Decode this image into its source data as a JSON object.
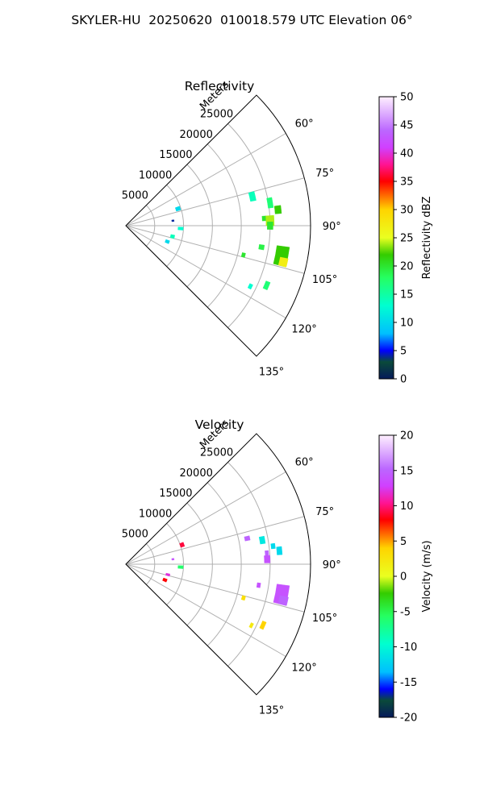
{
  "figure": {
    "title": "SKYLER-HU  20250620  010018.579 UTC Elevation 06°"
  },
  "chart_data": [
    {
      "type": "heatmap",
      "projection": "polar-sector",
      "title": "Reflectivity",
      "range_label": "Meters",
      "range_ticks": [
        5000,
        10000,
        15000,
        20000,
        25000
      ],
      "range_max": 32000,
      "azimuth_range_deg": [
        45,
        135
      ],
      "azimuth_tick_labels": [
        "60°",
        "75°",
        "90°",
        "105°",
        "120°",
        "135°"
      ],
      "azimuth_tick_values": [
        60,
        75,
        90,
        105,
        120,
        135
      ],
      "grid": true,
      "colorbar": {
        "label": "Reflectivity dBZ",
        "min": 0,
        "max": 50,
        "ticks": [
          0,
          5,
          10,
          15,
          20,
          25,
          30,
          35,
          40,
          45,
          50
        ],
        "colormap": "pyart_HomeyerRainbow-like",
        "stops": [
          [
            0,
            "#061a5a"
          ],
          [
            0.06,
            "#0a4a3a"
          ],
          [
            0.1,
            "#0000ff"
          ],
          [
            0.16,
            "#00bfff"
          ],
          [
            0.26,
            "#00ffd0"
          ],
          [
            0.36,
            "#26ff60"
          ],
          [
            0.44,
            "#34cc00"
          ],
          [
            0.5,
            "#eaff20"
          ],
          [
            0.6,
            "#ffd400"
          ],
          [
            0.7,
            "#ff0000"
          ],
          [
            0.76,
            "#ff1493"
          ],
          [
            0.82,
            "#d040ff"
          ],
          [
            0.88,
            "#bb66ff"
          ],
          [
            1.0,
            "#fff0ff"
          ]
        ]
      },
      "echo_cells": [
        {
          "az": 77,
          "r": 22500,
          "dr": 1000,
          "daz": 4,
          "value": 14
        },
        {
          "az": 81,
          "r": 25300,
          "dr": 900,
          "daz": 4,
          "value": 17
        },
        {
          "az": 84,
          "r": 26500,
          "dr": 1100,
          "daz": 3,
          "value": 22
        },
        {
          "az": 87,
          "r": 24000,
          "dr": 700,
          "daz": 2,
          "value": 20
        },
        {
          "az": 88,
          "r": 25000,
          "dr": 1400,
          "daz": 4,
          "value": 24
        },
        {
          "az": 90,
          "r": 25000,
          "dr": 1000,
          "daz": 3,
          "value": 20
        },
        {
          "az": 99,
          "r": 23800,
          "dr": 900,
          "daz": 2,
          "value": 19
        },
        {
          "az": 101,
          "r": 27500,
          "dr": 2200,
          "daz": 7,
          "value": 22
        },
        {
          "az": 103,
          "r": 28000,
          "dr": 1400,
          "daz": 3,
          "value": 27
        },
        {
          "az": 104,
          "r": 21000,
          "dr": 600,
          "daz": 2,
          "value": 20
        },
        {
          "az": 113,
          "r": 26500,
          "dr": 800,
          "daz": 3,
          "value": 17
        },
        {
          "az": 116,
          "r": 24000,
          "dr": 600,
          "daz": 2,
          "value": 13
        },
        {
          "az": 72,
          "r": 9500,
          "dr": 800,
          "daz": 4,
          "value": 10
        },
        {
          "az": 84,
          "r": 8200,
          "dr": 400,
          "daz": 2,
          "value": 4
        },
        {
          "az": 93,
          "r": 9500,
          "dr": 900,
          "daz": 3,
          "value": 13
        },
        {
          "az": 103,
          "r": 8300,
          "dr": 700,
          "daz": 4,
          "value": 14
        },
        {
          "az": 111,
          "r": 7700,
          "dr": 700,
          "daz": 4,
          "value": 10
        }
      ]
    },
    {
      "type": "heatmap",
      "projection": "polar-sector",
      "title": "Velocity",
      "range_label": "Meters",
      "range_ticks": [
        5000,
        10000,
        15000,
        20000,
        25000
      ],
      "range_max": 32000,
      "azimuth_range_deg": [
        45,
        135
      ],
      "azimuth_tick_labels": [
        "60°",
        "75°",
        "90°",
        "105°",
        "120°",
        "135°"
      ],
      "azimuth_tick_values": [
        60,
        75,
        90,
        105,
        120,
        135
      ],
      "grid": true,
      "colorbar": {
        "label": "Velocity (m/s)",
        "min": -20,
        "max": 20,
        "ticks": [
          -20,
          -15,
          -10,
          -5,
          0,
          5,
          10,
          15,
          20
        ],
        "colormap": "pyart_BuDRd-like",
        "stops": [
          [
            0,
            "#061a5a"
          ],
          [
            0.06,
            "#0a4a3a"
          ],
          [
            0.1,
            "#0000ff"
          ],
          [
            0.16,
            "#00bfff"
          ],
          [
            0.26,
            "#00ffd0"
          ],
          [
            0.36,
            "#26ff60"
          ],
          [
            0.44,
            "#34cc00"
          ],
          [
            0.5,
            "#eaff20"
          ],
          [
            0.6,
            "#ffd400"
          ],
          [
            0.7,
            "#ff0000"
          ],
          [
            0.76,
            "#ff1493"
          ],
          [
            0.82,
            "#d040ff"
          ],
          [
            0.88,
            "#bb66ff"
          ],
          [
            1.0,
            "#fff0ff"
          ]
        ]
      },
      "echo_cells": [
        {
          "az": 78,
          "r": 21500,
          "dr": 900,
          "daz": 2,
          "value": 15
        },
        {
          "az": 80,
          "r": 24000,
          "dr": 900,
          "daz": 3,
          "value": -11
        },
        {
          "az": 83,
          "r": 25700,
          "dr": 700,
          "daz": 2,
          "value": -12
        },
        {
          "az": 85,
          "r": 26700,
          "dr": 900,
          "daz": 3,
          "value": -12
        },
        {
          "az": 86,
          "r": 24500,
          "dr": 600,
          "daz": 3,
          "value": 15
        },
        {
          "az": 88,
          "r": 24500,
          "dr": 1000,
          "daz": 3,
          "value": 14
        },
        {
          "az": 99,
          "r": 23300,
          "dr": 600,
          "daz": 2,
          "value": 14
        },
        {
          "az": 101,
          "r": 27500,
          "dr": 2200,
          "daz": 7,
          "value": 14
        },
        {
          "az": 103,
          "r": 28000,
          "dr": 1500,
          "daz": 3,
          "value": 15
        },
        {
          "az": 106,
          "r": 21200,
          "dr": 600,
          "daz": 2,
          "value": 3
        },
        {
          "az": 114,
          "r": 26000,
          "dr": 700,
          "daz": 3,
          "value": 4
        },
        {
          "az": 116,
          "r": 24200,
          "dr": 500,
          "daz": 2,
          "value": 2
        },
        {
          "az": 71,
          "r": 10300,
          "dr": 700,
          "daz": 4,
          "value": 9
        },
        {
          "az": 84,
          "r": 8200,
          "dr": 400,
          "daz": 2,
          "value": 14
        },
        {
          "az": 93,
          "r": 9500,
          "dr": 900,
          "daz": 3,
          "value": -6
        },
        {
          "az": 104,
          "r": 7500,
          "dr": 700,
          "daz": 3,
          "value": 12
        },
        {
          "az": 112,
          "r": 7300,
          "dr": 700,
          "daz": 4,
          "value": 8
        }
      ]
    }
  ]
}
